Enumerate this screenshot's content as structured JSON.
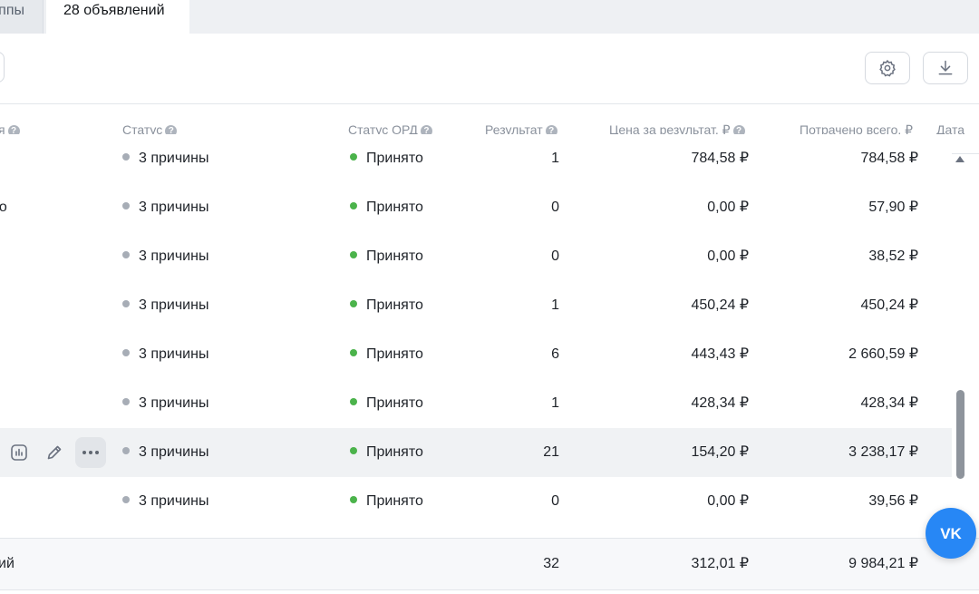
{
  "tabs": {
    "previous_label": "ппы",
    "active_label": "28 объявлений"
  },
  "toolbar": {
    "settings_icon": "gear-icon",
    "download_icon": "download-icon"
  },
  "table": {
    "headers": {
      "name_partial": "я",
      "status": "Статус",
      "ord_status": "Статус ОРД",
      "result": "Результат",
      "price_per_result": "Цена за результат, ₽",
      "spent_total": "Потрачено всего, ₽",
      "date_partial": "Дата"
    },
    "rows": [
      {
        "name": "",
        "status": "3 причины",
        "ord": "Принято",
        "result": "1",
        "price": "784,58 ₽",
        "spent": "784,58 ₽"
      },
      {
        "name": "ео",
        "status": "3 причины",
        "ord": "Принято",
        "result": "0",
        "price": "0,00 ₽",
        "spent": "57,90 ₽"
      },
      {
        "name": "",
        "status": "3 причины",
        "ord": "Принято",
        "result": "0",
        "price": "0,00 ₽",
        "spent": "38,52 ₽"
      },
      {
        "name": "",
        "status": "3 причины",
        "ord": "Принято",
        "result": "1",
        "price": "450,24 ₽",
        "spent": "450,24 ₽"
      },
      {
        "name": "",
        "status": "3 причины",
        "ord": "Принято",
        "result": "6",
        "price": "443,43 ₽",
        "spent": "2 660,59 ₽"
      },
      {
        "name": "",
        "status": "3 причины",
        "ord": "Принято",
        "result": "1",
        "price": "428,34 ₽",
        "spent": "428,34 ₽"
      },
      {
        "name": "",
        "status": "3 причины",
        "ord": "Принято",
        "result": "21",
        "price": "154,20 ₽",
        "spent": "3 238,17 ₽"
      },
      {
        "name": "",
        "status": "3 причины",
        "ord": "Принято",
        "result": "0",
        "price": "0,00 ₽",
        "spent": "39,56 ₽"
      }
    ],
    "totals": {
      "label_partial": "ий",
      "result": "32",
      "price": "312,01 ₽",
      "spent": "9 984,21 ₽"
    }
  },
  "colors": {
    "status_grey": "#a7adb6",
    "status_green": "#4bb34b",
    "vk_blue": "#2787f5"
  },
  "row_actions_icons": [
    "stats-icon",
    "edit-pencil-icon",
    "more-dots-icon"
  ],
  "fab": {
    "icon": "vk-logo-icon"
  }
}
